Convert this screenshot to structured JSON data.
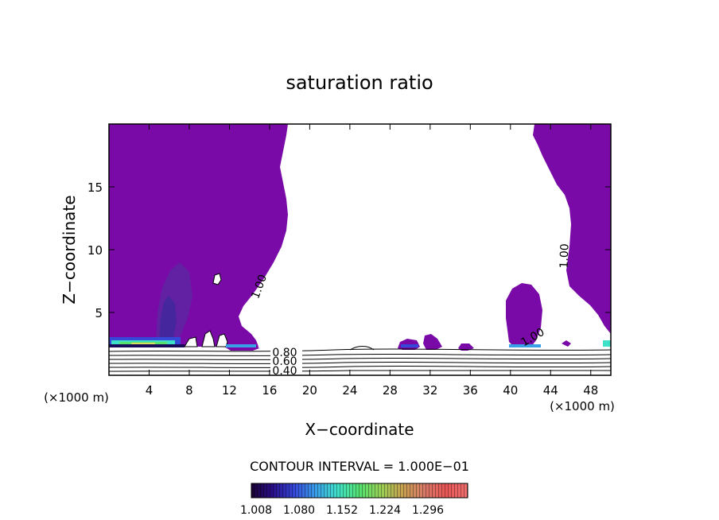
{
  "chart_data": {
    "type": "heatmap",
    "title": "saturation ratio",
    "xlabel": "X−coordinate",
    "ylabel": "Z−coordinate",
    "x_unit": "(×1000 m)",
    "z_unit": "(×1000 m)",
    "xlim": [
      0,
      50
    ],
    "ylim": [
      0,
      20
    ],
    "x_ticks": [
      4,
      8,
      12,
      16,
      20,
      24,
      28,
      32,
      36,
      40,
      44,
      48
    ],
    "y_ticks": [
      5,
      10,
      15
    ],
    "contour_interval_text": "CONTOUR INTERVAL = 1.000E−01",
    "contour_labels": [
      "1.00",
      "1.00",
      "1.00",
      "0.80",
      "0.60",
      "0.40"
    ],
    "colorbar": {
      "labels": [
        "1.008",
        "1.080",
        "1.152",
        "1.224",
        "1.296"
      ],
      "colors": [
        "#1a0033",
        "#2a0f8a",
        "#3548d8",
        "#39a0e8",
        "#3fe0c8",
        "#55e070",
        "#9ad055",
        "#c8a050",
        "#d87a68",
        "#e85555",
        "#f07070"
      ]
    },
    "fill_color": "#7a0aa8"
  }
}
